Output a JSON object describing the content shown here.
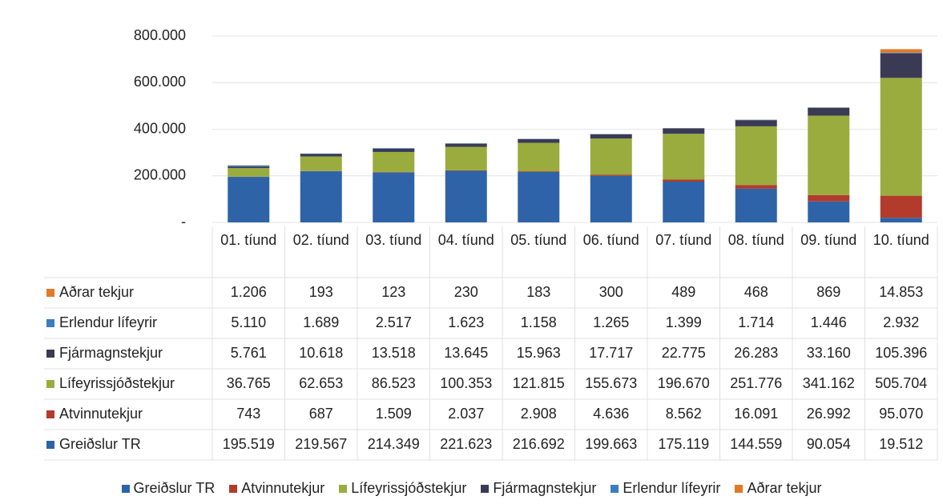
{
  "chart_data": {
    "type": "stacked_bar",
    "categories": [
      "01. tíund",
      "02. tíund",
      "03. tíund",
      "04. tíund",
      "05. tíund",
      "06. tíund",
      "07. tíund",
      "08. tíund",
      "09. tíund",
      "10. tíund"
    ],
    "ylim": [
      0,
      800000
    ],
    "yticks": [
      {
        "value": 0,
        "label": "-"
      },
      {
        "value": 200000,
        "label": "200.000"
      },
      {
        "value": 400000,
        "label": "400.000"
      },
      {
        "value": 600000,
        "label": "600.000"
      },
      {
        "value": 800000,
        "label": "800.000"
      }
    ],
    "grid": true,
    "series": [
      {
        "name": "Greiðslur TR",
        "color": "#2e63a8",
        "values": [
          195519,
          219567,
          214349,
          221623,
          216692,
          199663,
          175119,
          144559,
          90054,
          19512
        ],
        "value_labels": [
          "195.519",
          "219.567",
          "214.349",
          "221.623",
          "216.692",
          "199.663",
          "175.119",
          "144.559",
          "90.054",
          "19.512"
        ]
      },
      {
        "name": "Atvinnutekjur",
        "color": "#b23b2c",
        "values": [
          743,
          687,
          1509,
          2037,
          2908,
          4636,
          8562,
          16091,
          26992,
          95070
        ],
        "value_labels": [
          "743",
          "687",
          "1.509",
          "2.037",
          "2.908",
          "4.636",
          "8.562",
          "16.091",
          "26.992",
          "95.070"
        ]
      },
      {
        "name": "Lífeyrissjóðstekjur",
        "color": "#9aac3e",
        "values": [
          36765,
          62653,
          86523,
          100353,
          121815,
          155673,
          196670,
          251776,
          341162,
          505704
        ],
        "value_labels": [
          "36.765",
          "62.653",
          "86.523",
          "100.353",
          "121.815",
          "155.673",
          "196.670",
          "251.776",
          "341.162",
          "505.704"
        ]
      },
      {
        "name": "Fjármagnstekjur",
        "color": "#3b3a55",
        "values": [
          5761,
          10618,
          13518,
          13645,
          15963,
          17717,
          22775,
          26283,
          33160,
          105396
        ],
        "value_labels": [
          "5.761",
          "10.618",
          "13.518",
          "13.645",
          "15.963",
          "17.717",
          "22.775",
          "26.283",
          "33.160",
          "105.396"
        ]
      },
      {
        "name": "Erlendur lífeyrir",
        "color": "#3a7dc0",
        "values": [
          5110,
          1689,
          2517,
          1623,
          1158,
          1265,
          1399,
          1714,
          1446,
          2932
        ],
        "value_labels": [
          "5.110",
          "1.689",
          "2.517",
          "1.623",
          "1.158",
          "1.265",
          "1.399",
          "1.714",
          "1.446",
          "2.932"
        ]
      },
      {
        "name": "Aðrar tekjur",
        "color": "#e07a26",
        "values": [
          1206,
          193,
          123,
          230,
          183,
          300,
          489,
          468,
          869,
          14853
        ],
        "value_labels": [
          "1.206",
          "193",
          "123",
          "230",
          "183",
          "300",
          "489",
          "468",
          "869",
          "14.853"
        ]
      }
    ]
  }
}
